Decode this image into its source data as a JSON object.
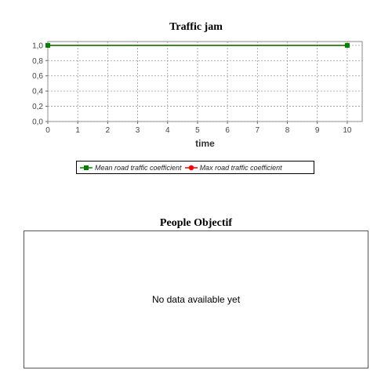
{
  "chart_data": [
    {
      "type": "line",
      "title": "Traffic jam",
      "xlabel": "time",
      "ylabel": "",
      "xlim": [
        0,
        10.5
      ],
      "ylim": [
        0,
        1.05
      ],
      "x_ticks": [
        "0",
        "1",
        "2",
        "3",
        "4",
        "5",
        "6",
        "7",
        "8",
        "9",
        "10"
      ],
      "y_ticks": [
        "0,0",
        "0,2",
        "0,4",
        "0,6",
        "0,8",
        "1,0"
      ],
      "grid": true,
      "legend_position": "bottom",
      "series": [
        {
          "name": "Mean road traffic coefficient",
          "color": "#008000",
          "marker": "square",
          "x": [
            0,
            10
          ],
          "y": [
            1.0,
            1.0
          ]
        },
        {
          "name": "Max road traffic coefficient",
          "color": "#ff0000",
          "marker": "circle",
          "x": [
            0,
            10
          ],
          "y": [
            1.0,
            1.0
          ]
        }
      ]
    },
    {
      "type": "line",
      "title": "People Objectif",
      "empty_message": "No data available yet",
      "series": []
    }
  ]
}
